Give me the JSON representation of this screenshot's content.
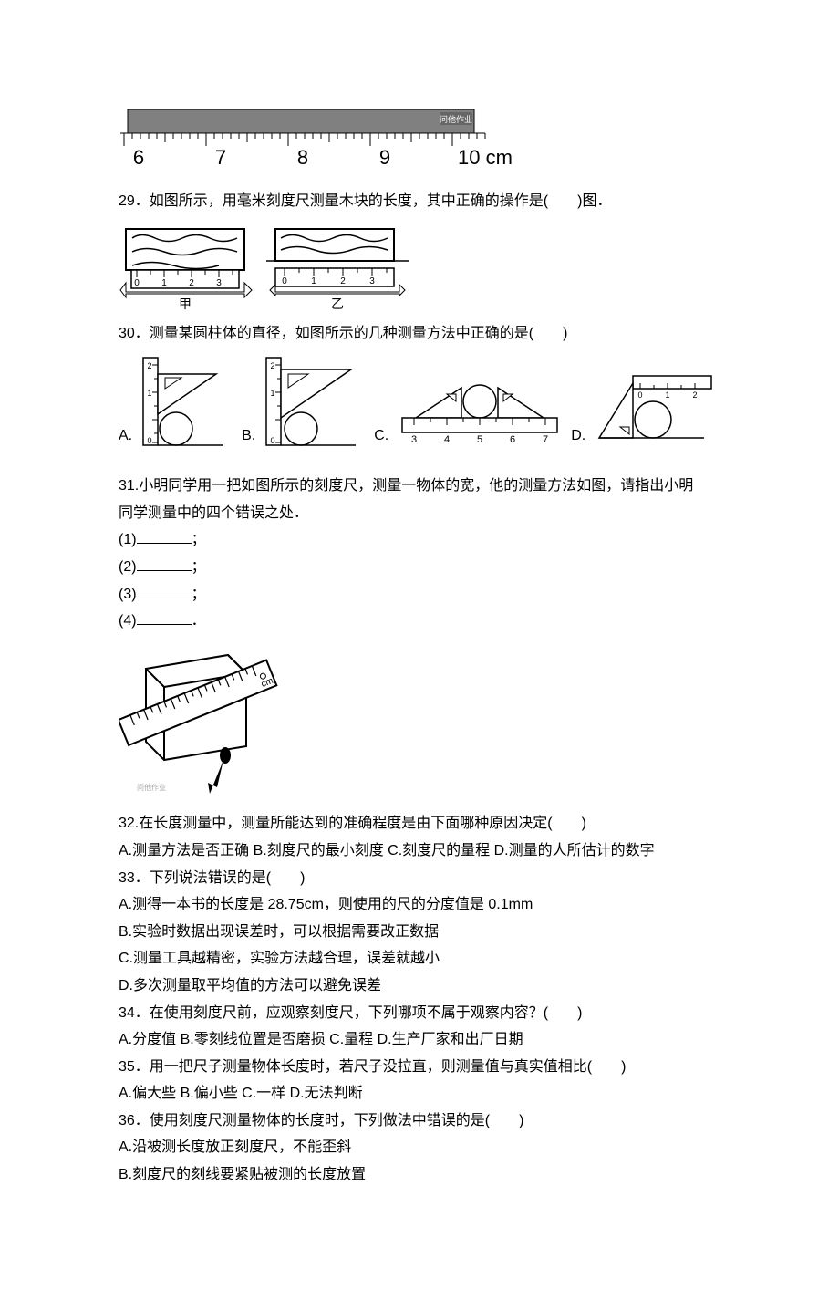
{
  "ruler": {
    "watermark": "问他作业",
    "labels": [
      "6",
      "7",
      "8",
      "9",
      "10 cm"
    ],
    "bg_color": "#808080",
    "tick_color": "#000000",
    "font_size": 22
  },
  "q29": {
    "text": "29．如图所示，用毫米刻度尺测量木块的长度，其中正确的操作是(　　)图．",
    "figA_scale": [
      "0",
      "1",
      "2",
      "3"
    ],
    "figA_label": "甲",
    "figB_scale": [
      "0",
      "1",
      "2",
      "3"
    ],
    "figB_label": "乙"
  },
  "q30": {
    "text": "30．测量某圆柱体的直径，如图所示的几种测量方法中正确的是(　　)",
    "optA": "A.",
    "optB": "B.",
    "optC": "C.",
    "optD": "D.",
    "scaleA": [
      "0",
      "1",
      "2"
    ],
    "scaleB": [
      "0",
      "1",
      "2"
    ],
    "scaleC": [
      "3",
      "4",
      "5",
      "6",
      "7"
    ],
    "scaleD": [
      "0",
      "1",
      "2"
    ]
  },
  "q31": {
    "intro1": "31.小明同学用一把如图所示的刻度尺，测量一物体的宽，他的测量方法如图，请指出小明",
    "intro2": "同学测量中的四个错误之处．",
    "l1": "(1)",
    "l1_suffix": "；",
    "l2": "(2)",
    "l2_suffix": "；",
    "l3": "(3)",
    "l3_suffix": "；",
    "l4": "(4)",
    "l4_suffix": "．",
    "ruler_unit": "cm",
    "watermark": "问他作业"
  },
  "q32": {
    "text": "32.在长度测量中，测量所能达到的准确程度是由下面哪种原因决定(　　)",
    "optA": "A.测量方法是否正确",
    "optB": "B.刻度尺的最小刻度",
    "optC": "C.刻度尺的量程",
    "optD": "D.测量的人所估计的数字"
  },
  "q33": {
    "text": "33．下列说法错误的是(　　)",
    "optA": "A.测得一本书的长度是 28.75cm，则使用的尺的分度值是 0.1mm",
    "optB": "B.实验时数据出现误差时，可以根据需要改正数据",
    "optC": "C.测量工具越精密，实验方法越合理，误差就越小",
    "optD": "D.多次测量取平均值的方法可以避免误差"
  },
  "q34": {
    "text": "34．在使用刻度尺前，应观察刻度尺，下列哪项不属于观察内容？(　　)",
    "optA": "A.分度值",
    "optB": "B.零刻线位置是否磨损",
    "optC": "C.量程",
    "optD": "D.生产厂家和出厂日期"
  },
  "q35": {
    "text": "35．用一把尺子测量物体长度时，若尺子没拉直，则测量值与真实值相比(　　)",
    "optA": "A.偏大些",
    "optB": "B.偏小些",
    "optC": "C.一样",
    "optD": "D.无法判断"
  },
  "q36": {
    "text": "36．使用刻度尺测量物体的长度时，下列做法中错误的是(　　)",
    "optA": "A.沿被测长度放正刻度尺，不能歪斜",
    "optB": "B.刻度尺的刻线要紧贴被测的长度放置"
  }
}
